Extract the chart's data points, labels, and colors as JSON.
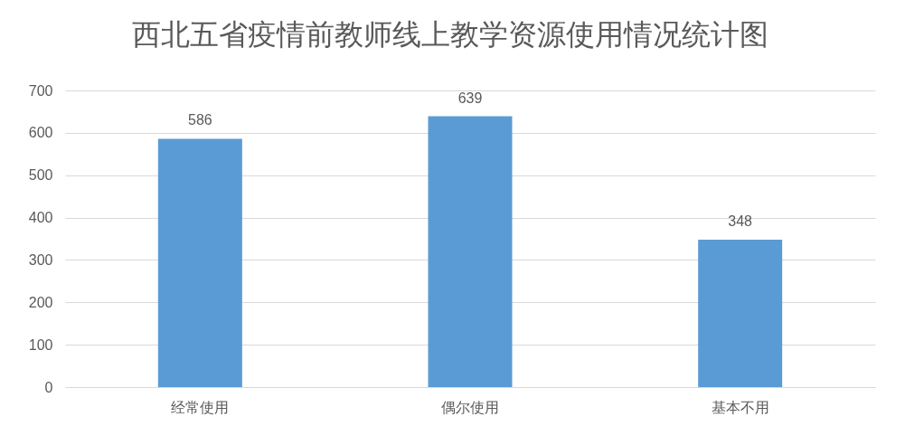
{
  "chart_data": {
    "type": "bar",
    "title": "西北五省疫情前教师线上教学资源使用情况统计图",
    "categories": [
      "经常使用",
      "偶尔使用",
      "基本不用"
    ],
    "values": [
      586,
      639,
      348
    ],
    "color": "#5b9bd5",
    "ylim": [
      0,
      700
    ],
    "yticks": [
      0,
      100,
      200,
      300,
      400,
      500,
      600,
      700
    ],
    "grid": "y",
    "data_labels": true
  }
}
